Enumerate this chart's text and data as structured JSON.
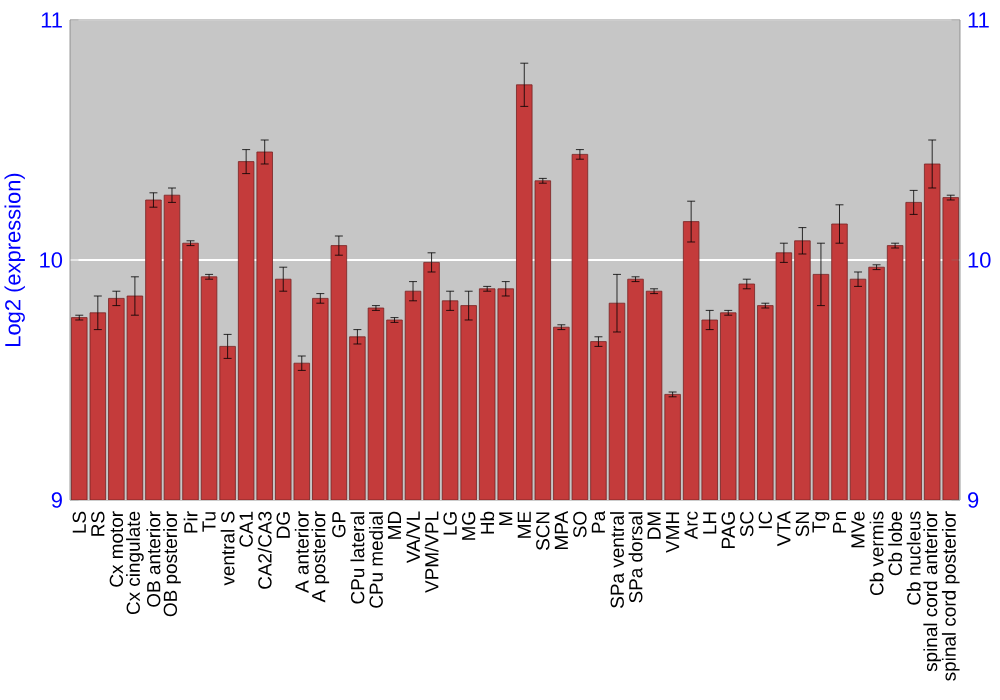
{
  "chart_data": {
    "type": "bar",
    "ylabel": "Log2 (expression)",
    "categories": [
      "LS",
      "RS",
      "Cx motor",
      "Cx cingulate",
      "OB anterior",
      "OB posterior",
      "Pir",
      "Tu",
      "ventral S",
      "CA1",
      "CA2/CA3",
      "DG",
      "A anterior",
      "A posterior",
      "GP",
      "CPu lateral",
      "CPu medial",
      "MD",
      "VA/VL",
      "VPM/VPL",
      "LG",
      "MG",
      "Hb",
      "M",
      "ME",
      "SCN",
      "MPA",
      "SO",
      "Pa",
      "SPa ventral",
      "SPa dorsal",
      "DM",
      "VMH",
      "Arc",
      "LH",
      "PAG",
      "SC",
      "IC",
      "VTA",
      "SN",
      "Tg",
      "Pn",
      "MVe",
      "Cb vermis",
      "Cb lobe",
      "Cb nucleus",
      "spinal cord anterior",
      "spinal cord posterior"
    ],
    "values": [
      9.76,
      9.78,
      9.84,
      9.85,
      10.25,
      10.27,
      10.07,
      9.93,
      9.64,
      10.41,
      10.45,
      9.92,
      9.57,
      9.84,
      10.06,
      9.68,
      9.8,
      9.75,
      9.87,
      9.99,
      9.83,
      9.81,
      9.88,
      9.88,
      10.73,
      10.33,
      9.72,
      10.44,
      9.66,
      9.82,
      9.92,
      9.87,
      9.44,
      10.16,
      9.75,
      9.78,
      9.9,
      9.81,
      10.03,
      10.08,
      9.94,
      10.15,
      9.92,
      9.97,
      10.06,
      10.24,
      10.4,
      10.26
    ],
    "errors": [
      0.01,
      0.07,
      0.03,
      0.08,
      0.03,
      0.03,
      0.01,
      0.01,
      0.05,
      0.05,
      0.05,
      0.05,
      0.03,
      0.02,
      0.04,
      0.03,
      0.01,
      0.01,
      0.04,
      0.04,
      0.04,
      0.06,
      0.01,
      0.03,
      0.09,
      0.01,
      0.01,
      0.02,
      0.02,
      0.12,
      0.01,
      0.01,
      0.01,
      0.085,
      0.04,
      0.01,
      0.02,
      0.01,
      0.04,
      0.055,
      0.13,
      0.08,
      0.03,
      0.01,
      0.01,
      0.05,
      0.1,
      0.01
    ],
    "color": "#c43b3b",
    "ylim": [
      9,
      11
    ],
    "yticks": [
      9,
      10,
      11
    ],
    "y2lim": [
      9,
      11
    ],
    "y2ticks": [
      9,
      10,
      11
    ],
    "grid": "y"
  }
}
